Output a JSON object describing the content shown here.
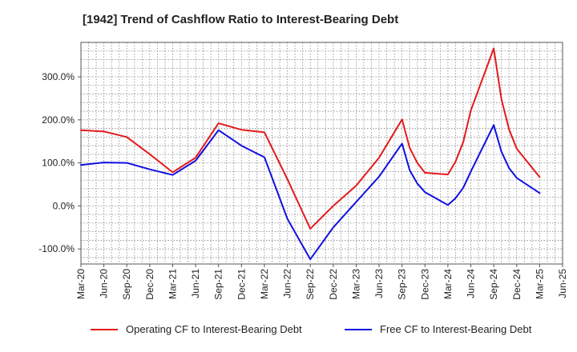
{
  "chart_data": {
    "type": "line",
    "title": "[1942]  Trend of Cashflow Ratio to Interest-Bearing Debt",
    "xlabel": "",
    "ylabel": "",
    "x_ticks": [
      "Mar-20",
      "Jun-20",
      "Sep-20",
      "Dec-20",
      "Mar-21",
      "Jun-21",
      "Sep-21",
      "Dec-21",
      "Mar-22",
      "Jun-22",
      "Sep-22",
      "Dec-22",
      "Mar-23",
      "Jun-23",
      "Sep-23",
      "Dec-23",
      "Mar-24",
      "Jun-24",
      "Sep-24",
      "Dec-24",
      "Mar-25",
      "Jun-25"
    ],
    "y_ticks": [
      -100,
      0,
      100,
      200,
      300
    ],
    "y_tick_labels": [
      "-100.0%",
      "0.0%",
      "100.0%",
      "200.0%",
      "300.0%"
    ],
    "ylim": [
      -135,
      380
    ],
    "grid": true,
    "legend_position": "bottom",
    "series": [
      {
        "name": "Operating CF to Interest-Bearing Debt",
        "color": "#e31a1c",
        "points": [
          {
            "x": "2020-03",
            "y": 176
          },
          {
            "x": "2020-06",
            "y": 173
          },
          {
            "x": "2020-09",
            "y": 160
          },
          {
            "x": "2020-12",
            "y": 120
          },
          {
            "x": "2021-03",
            "y": 78
          },
          {
            "x": "2021-06",
            "y": 112
          },
          {
            "x": "2021-09",
            "y": 192
          },
          {
            "x": "2021-12",
            "y": 177
          },
          {
            "x": "2022-03",
            "y": 171
          },
          {
            "x": "2022-06",
            "y": 62
          },
          {
            "x": "2022-09",
            "y": -53
          },
          {
            "x": "2022-12",
            "y": 0
          },
          {
            "x": "2023-03",
            "y": 47
          },
          {
            "x": "2023-06",
            "y": 112
          },
          {
            "x": "2023-09",
            "y": 201
          },
          {
            "x": "2023-10",
            "y": 135
          },
          {
            "x": "2023-11",
            "y": 100
          },
          {
            "x": "2023-12",
            "y": 77
          },
          {
            "x": "2024-03",
            "y": 73
          },
          {
            "x": "2024-04",
            "y": 103
          },
          {
            "x": "2024-05",
            "y": 148
          },
          {
            "x": "2024-06",
            "y": 222
          },
          {
            "x": "2024-09",
            "y": 366
          },
          {
            "x": "2024-10",
            "y": 248
          },
          {
            "x": "2024-11",
            "y": 178
          },
          {
            "x": "2024-12",
            "y": 133
          },
          {
            "x": "2025-03",
            "y": 67
          }
        ]
      },
      {
        "name": "Free CF to Interest-Bearing Debt",
        "color": "#1010e0",
        "points": [
          {
            "x": "2020-03",
            "y": 95
          },
          {
            "x": "2020-06",
            "y": 101
          },
          {
            "x": "2020-09",
            "y": 100
          },
          {
            "x": "2020-12",
            "y": 85
          },
          {
            "x": "2021-03",
            "y": 72
          },
          {
            "x": "2021-06",
            "y": 105
          },
          {
            "x": "2021-09",
            "y": 176
          },
          {
            "x": "2021-12",
            "y": 140
          },
          {
            "x": "2022-03",
            "y": 113
          },
          {
            "x": "2022-06",
            "y": -30
          },
          {
            "x": "2022-09",
            "y": -124
          },
          {
            "x": "2022-12",
            "y": -50
          },
          {
            "x": "2023-03",
            "y": 9
          },
          {
            "x": "2023-06",
            "y": 68
          },
          {
            "x": "2023-09",
            "y": 145
          },
          {
            "x": "2023-10",
            "y": 83
          },
          {
            "x": "2023-11",
            "y": 52
          },
          {
            "x": "2023-12",
            "y": 32
          },
          {
            "x": "2024-03",
            "y": 2
          },
          {
            "x": "2024-04",
            "y": 18
          },
          {
            "x": "2024-05",
            "y": 42
          },
          {
            "x": "2024-06",
            "y": 80
          },
          {
            "x": "2024-09",
            "y": 188
          },
          {
            "x": "2024-10",
            "y": 126
          },
          {
            "x": "2024-11",
            "y": 88
          },
          {
            "x": "2024-12",
            "y": 65
          },
          {
            "x": "2025-03",
            "y": 30
          }
        ]
      }
    ]
  }
}
